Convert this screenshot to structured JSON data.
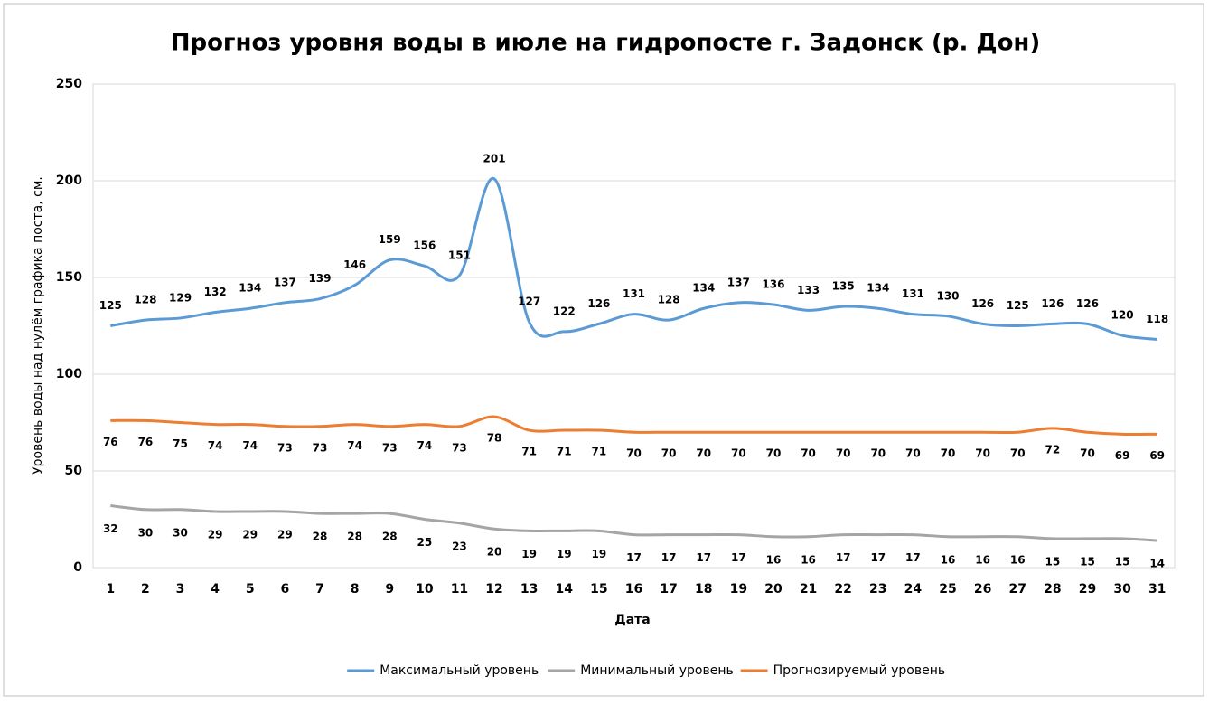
{
  "chart_data": {
    "type": "line",
    "title": "Прогноз уровня воды в июле на гидропосте г. Задонск (р. Дон)",
    "x_label": "Дата",
    "y_label": "Уровень воды над нулём графика поста, см.",
    "categories": [
      1,
      2,
      3,
      4,
      5,
      6,
      7,
      8,
      9,
      10,
      11,
      12,
      13,
      14,
      15,
      16,
      17,
      18,
      19,
      20,
      21,
      22,
      23,
      24,
      25,
      26,
      27,
      28,
      29,
      30,
      31
    ],
    "series": [
      {
        "name": "Максимальный уровень",
        "color": "#5b9bd5",
        "values": [
          125,
          128,
          129,
          132,
          134,
          137,
          139,
          146,
          159,
          156,
          151,
          201,
          127,
          122,
          126,
          131,
          128,
          134,
          137,
          136,
          133,
          135,
          134,
          131,
          130,
          126,
          125,
          126,
          126,
          120,
          118
        ]
      },
      {
        "name": "Минимальный уровень",
        "color": "#a5a5a5",
        "values": [
          32,
          30,
          30,
          29,
          29,
          29,
          28,
          28,
          28,
          25,
          23,
          20,
          19,
          19,
          19,
          17,
          17,
          17,
          17,
          16,
          16,
          17,
          17,
          17,
          16,
          16,
          16,
          15,
          15,
          15,
          14
        ]
      },
      {
        "name": "Прогнозируемый уровень",
        "color": "#ed7d31",
        "values": [
          76,
          76,
          75,
          74,
          74,
          73,
          73,
          74,
          73,
          74,
          73,
          78,
          71,
          71,
          71,
          70,
          70,
          70,
          70,
          70,
          70,
          70,
          70,
          70,
          70,
          70,
          70,
          72,
          70,
          69,
          69
        ]
      }
    ],
    "ylim": [
      0,
      250
    ],
    "yticks": [
      0,
      50,
      100,
      150,
      200,
      250
    ],
    "grid": true,
    "smooth": true,
    "legend": "bottom"
  }
}
